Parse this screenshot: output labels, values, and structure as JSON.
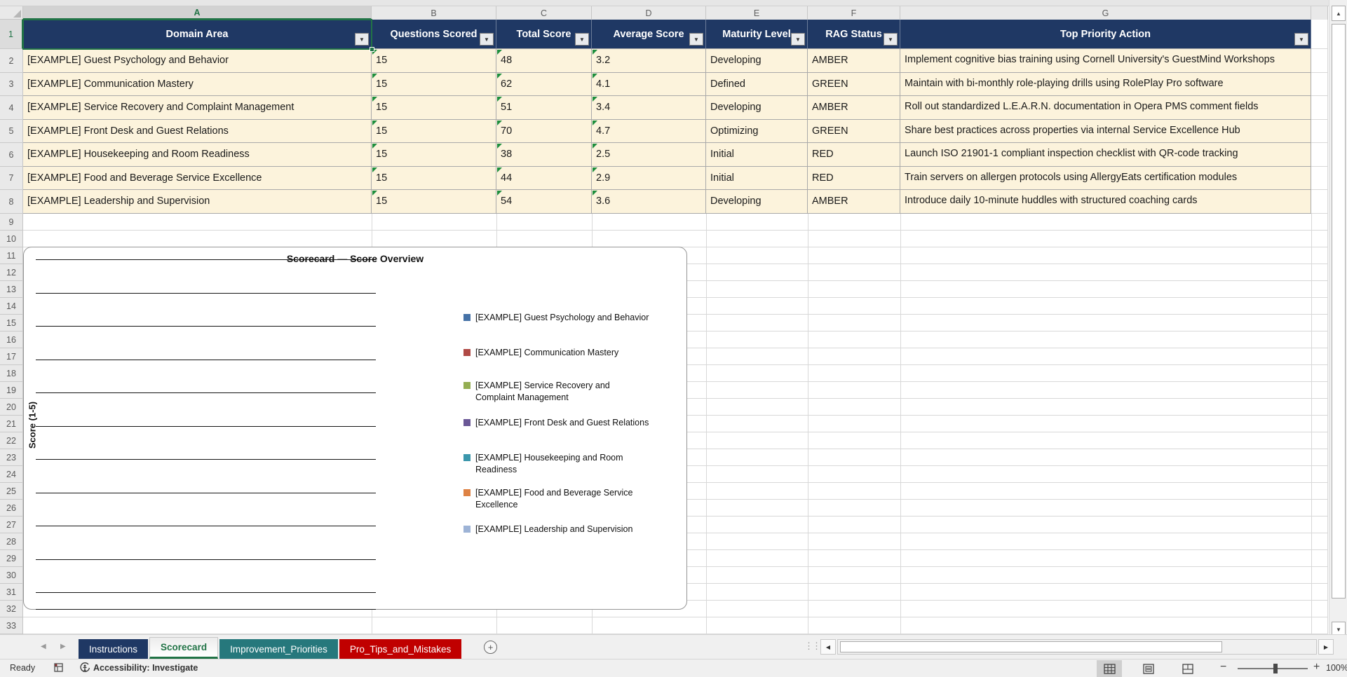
{
  "grid": {
    "column_letters": [
      "A",
      "B",
      "C",
      "D",
      "E",
      "F",
      "G"
    ],
    "row_numbers": [
      "1",
      "2",
      "3",
      "4",
      "5",
      "6",
      "7",
      "8",
      "9",
      "10",
      "11",
      "12",
      "13",
      "14",
      "15",
      "16",
      "17",
      "18",
      "19",
      "20",
      "21",
      "22",
      "23",
      "24",
      "25",
      "26",
      "27",
      "28",
      "29",
      "30",
      "31",
      "32",
      "33"
    ],
    "selected_cell": "A1",
    "selected_column": "A",
    "selected_row": "1"
  },
  "table": {
    "headers": [
      "Domain Area",
      "Questions Scored",
      "Total Score",
      "Average Score",
      "Maturity Level",
      "RAG Status",
      "Top Priority Action"
    ],
    "rows": [
      {
        "domain": "[EXAMPLE] Guest Psychology and Behavior",
        "questions": "15",
        "total": "48",
        "average": "3.2",
        "maturity": "Developing",
        "rag": "AMBER",
        "action": "Implement cognitive bias training using Cornell University's GuestMind Workshops"
      },
      {
        "domain": "[EXAMPLE] Communication Mastery",
        "questions": "15",
        "total": "62",
        "average": "4.1",
        "maturity": "Defined",
        "rag": "GREEN",
        "action": "Maintain with bi-monthly role-playing drills using RolePlay Pro software"
      },
      {
        "domain": "[EXAMPLE] Service Recovery and Complaint Management",
        "questions": "15",
        "total": "51",
        "average": "3.4",
        "maturity": "Developing",
        "rag": "AMBER",
        "action": "Roll out standardized L.E.A.R.N. documentation in Opera PMS comment fields"
      },
      {
        "domain": "[EXAMPLE] Front Desk and Guest Relations",
        "questions": "15",
        "total": "70",
        "average": "4.7",
        "maturity": "Optimizing",
        "rag": "GREEN",
        "action": "Share best practices across properties via internal Service Excellence Hub"
      },
      {
        "domain": "[EXAMPLE] Housekeeping and Room Readiness",
        "questions": "15",
        "total": "38",
        "average": "2.5",
        "maturity": "Initial",
        "rag": "RED",
        "action": "Launch ISO 21901-1 compliant inspection checklist with QR-code tracking"
      },
      {
        "domain": "[EXAMPLE] Food and Beverage Service Excellence",
        "questions": "15",
        "total": "44",
        "average": "2.9",
        "maturity": "Initial",
        "rag": "RED",
        "action": "Train servers on allergen protocols using AllergyEats certification modules"
      },
      {
        "domain": "[EXAMPLE] Leadership and Supervision",
        "questions": "15",
        "total": "54",
        "average": "3.6",
        "maturity": "Developing",
        "rag": "AMBER",
        "action": "Introduce daily 10-minute huddles with structured coaching cards"
      }
    ]
  },
  "chart": {
    "title": "Scorecard — Score Overview",
    "y_axis_label": "Score (1-5)",
    "legend": [
      {
        "lines": [
          "[EXAMPLE] Guest Psychology and Behavior"
        ],
        "color": "#4572A7"
      },
      {
        "lines": [
          "[EXAMPLE] Communication Mastery"
        ],
        "color": "#B04A45"
      },
      {
        "lines": [
          "[EXAMPLE] Service Recovery and",
          "Complaint Management"
        ],
        "color": "#94AE52"
      },
      {
        "lines": [
          "[EXAMPLE] Front Desk and Guest Relations"
        ],
        "color": "#6A5796"
      },
      {
        "lines": [
          "[EXAMPLE] Housekeeping and Room",
          "Readiness"
        ],
        "color": "#3B97AC"
      },
      {
        "lines": [
          "[EXAMPLE] Food and Beverage Service",
          "Excellence"
        ],
        "color": "#DE8244"
      },
      {
        "lines": [
          "[EXAMPLE] Leadership and Supervision"
        ],
        "color": "#9DB3D6"
      }
    ]
  },
  "chart_data": {
    "type": "line",
    "title": "Scorecard — Score Overview",
    "ylabel": "Score (1-5)",
    "ylim": [
      0,
      5
    ],
    "gridlines": true,
    "legend_position": "right",
    "series": [
      {
        "name": "[EXAMPLE] Guest Psychology and Behavior",
        "values": []
      },
      {
        "name": "[EXAMPLE] Communication Mastery",
        "values": []
      },
      {
        "name": "[EXAMPLE] Service Recovery and Complaint Management",
        "values": []
      },
      {
        "name": "[EXAMPLE] Front Desk and Guest Relations",
        "values": []
      },
      {
        "name": "[EXAMPLE] Housekeeping and Room Readiness",
        "values": []
      },
      {
        "name": "[EXAMPLE] Food and Beverage Service Excellence",
        "values": []
      },
      {
        "name": "[EXAMPLE] Leadership and Supervision",
        "values": []
      }
    ],
    "note": "plot area renders gridlines only; no data points visible"
  },
  "sheet_tabs": [
    {
      "label": "Instructions",
      "bg": "#1F3864",
      "fg": "#FFFFFF",
      "active": false
    },
    {
      "label": "Scorecard",
      "bg": "",
      "fg": "#217346",
      "active": true
    },
    {
      "label": "Improvement_Priorities",
      "bg": "#26787C",
      "fg": "#FFFFFF",
      "active": false
    },
    {
      "label": "Pro_Tips_and_Mistakes",
      "bg": "#C00000",
      "fg": "#FFFFFF",
      "active": false
    }
  ],
  "status_bar": {
    "mode": "Ready",
    "accessibility": "Accessibility: Investigate",
    "zoom_level": "100%"
  },
  "colors": {
    "header_bg": "#1F3864",
    "data_row_bg": "#FCF3DC",
    "selection_green": "#217346",
    "error_indicator_green": "#1E8E3E",
    "tab_navy": "#1F3864",
    "tab_teal": "#26787C",
    "tab_red": "#C00000"
  }
}
